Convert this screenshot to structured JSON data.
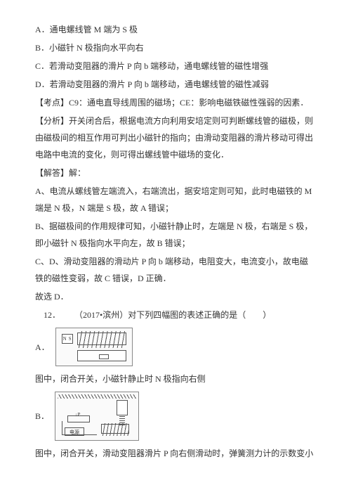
{
  "options": {
    "a": "A．通电螺线管 M 端为 S 极",
    "b": "B．小磁针 N 极指向水平向右",
    "c": "C．若滑动变阻器的滑片 P 向 b 端移动，通电螺线管的磁性增强",
    "d": "D．若滑动变阻器的滑片 P 向 b 端移动，通电螺线管的磁性减弱"
  },
  "kaodian": {
    "label": "【考点】",
    "text": "C9：通电直导线周围的磁场；CE：影响电磁铁磁性强弱的因素．"
  },
  "fenxi": {
    "label": "【分析】",
    "text": "开关闭合后，根据电流方向利用安培定则可判断螺线管的磁极，则由磁极间的相互作用可判出小磁针的指向；由滑动变阻器的滑片移动可得出电路中电流的变化，则可得出螺线管中磁场的变化．"
  },
  "jieda": {
    "label": "【解答】",
    "text": "解：",
    "paraA": "A、电流从螺线管左端流入，右端流出，据安培定则可知，此时电磁铁的 M 端是 N 极，N 端是 S 极，故 A 错误；",
    "paraB": "B、据磁极间的作用规律可知，小磁针静止时，左端是 N 极，右端是 S 极，即小磁针 N 极指向水平向左，故 B 错误；",
    "paraCD": "C、D、滑动变阻器的滑动片 P 向 b 端移动，电阻变大，电流变小，故电磁铁的磁性变弱，故 C 错误，D 正确．",
    "conclude": "故选 D．"
  },
  "q12": {
    "number": "12．",
    "source": "（2017•滨州）对下列四幅图的表述正确的是（　　）",
    "labelA": "A．",
    "captionA": "图中，闭合开关，小磁针静止时 N 极指向右侧",
    "labelB": "B．",
    "captionB": "图中，闭合开关，滑动变阻器滑片 P 向右侧滑动时，弹簧测力计的示数变小",
    "powerLabel": "电源"
  }
}
